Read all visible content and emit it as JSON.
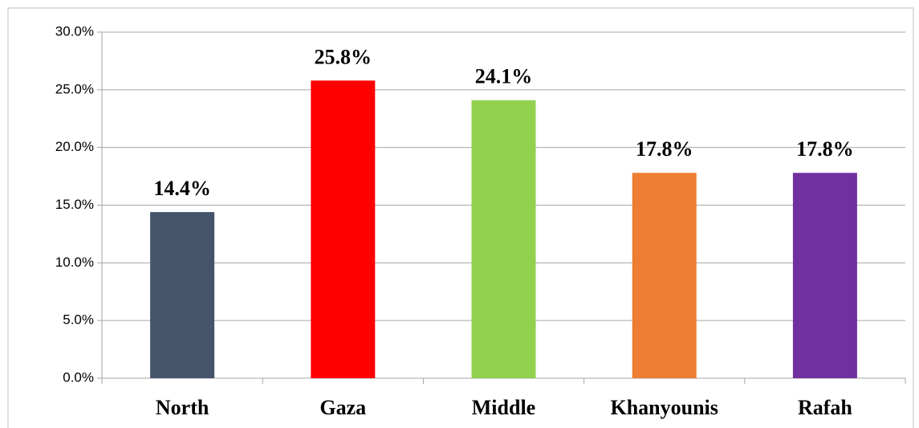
{
  "chart_data": {
    "type": "bar",
    "categories": [
      "North",
      "Gaza",
      "Middle",
      "Khanyounis",
      "Rafah"
    ],
    "values": [
      14.4,
      25.8,
      24.1,
      17.8,
      17.8
    ],
    "value_labels": [
      "14.4%",
      "25.8%",
      "24.1%",
      "17.8%",
      "17.8%"
    ],
    "colors": [
      "#44546a",
      "#ff0000",
      "#92d050",
      "#ed7d31",
      "#7030a0"
    ],
    "ylim": [
      0,
      30
    ],
    "yticks": [
      {
        "value": 0,
        "label": "0.0%"
      },
      {
        "value": 5,
        "label": "5.0%"
      },
      {
        "value": 10,
        "label": "10.0%"
      },
      {
        "value": 15,
        "label": "15.0%"
      },
      {
        "value": 20,
        "label": "20.0%"
      },
      {
        "value": 25,
        "label": "25.0%"
      },
      {
        "value": 30,
        "label": "30.0%"
      }
    ],
    "grid": true
  }
}
